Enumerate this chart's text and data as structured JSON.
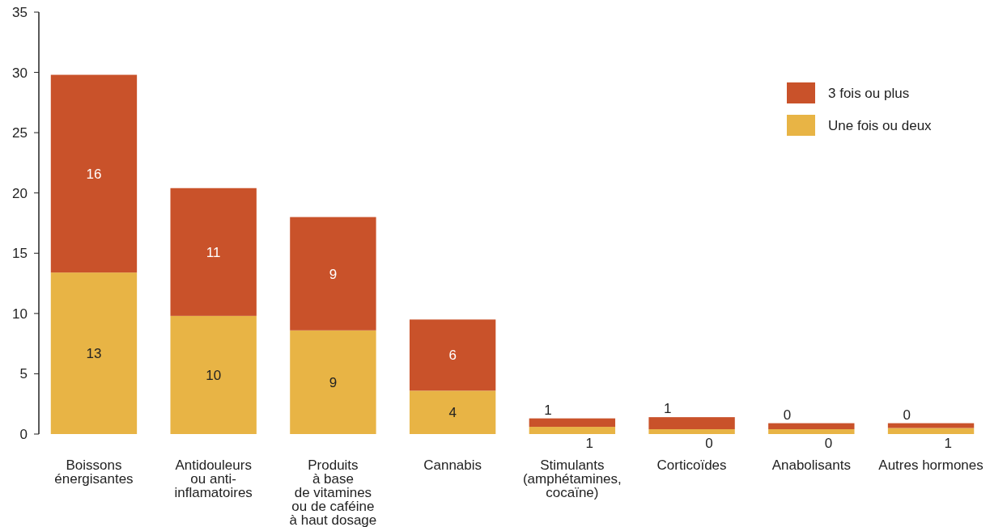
{
  "chart_data": {
    "type": "bar",
    "stacked": true,
    "categories": [
      "Boissons\nénergisantes",
      "Antidouleurs\nou anti-\ninflamatoires",
      "Produits\nà base\nde vitamines\nou de caféine\nà  haut dosage",
      "Cannabis",
      "Stimulants\n(amphétamines,\ncocaïne)",
      "Corticoïdes",
      "Anabolisants",
      "Autres hormones"
    ],
    "series": [
      {
        "name": "Une fois ou deux",
        "color": "#e8b445",
        "values": [
          13.4,
          9.8,
          8.6,
          3.6,
          0.6,
          0.4,
          0.4,
          0.5
        ],
        "value_labels": [
          "13",
          "10",
          "9",
          "4",
          "1",
          "0",
          "0",
          "1"
        ]
      },
      {
        "name": "3 fois ou plus",
        "color": "#c9522a",
        "values": [
          16.4,
          10.6,
          9.4,
          5.9,
          0.7,
          1.0,
          0.5,
          0.4
        ],
        "value_labels": [
          "16",
          "11",
          "9",
          "6",
          "1",
          "1",
          "0",
          "0"
        ]
      }
    ],
    "ylim": [
      0,
      35
    ],
    "yticks": [
      0,
      5,
      10,
      15,
      20,
      25,
      30,
      35
    ],
    "grid": false,
    "legend": "top right"
  }
}
